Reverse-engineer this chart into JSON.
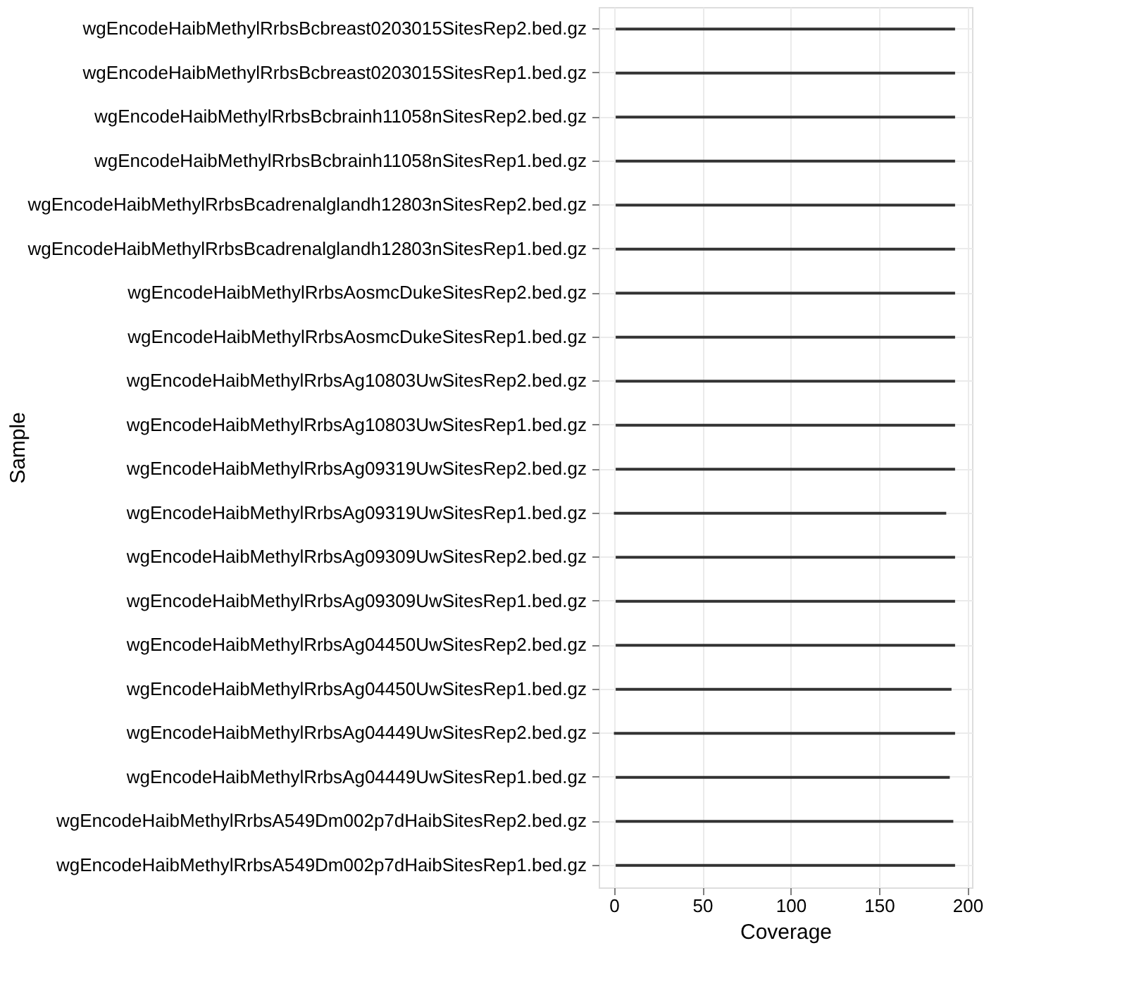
{
  "chart_data": {
    "type": "bar",
    "orientation": "horizontal",
    "xlabel": "Coverage",
    "ylabel": "Sample",
    "categories": [
      "wgEncodeHaibMethylRrbsBcbreast0203015SitesRep2.bed.gz",
      "wgEncodeHaibMethylRrbsBcbreast0203015SitesRep1.bed.gz",
      "wgEncodeHaibMethylRrbsBcbrainh11058nSitesRep2.bed.gz",
      "wgEncodeHaibMethylRrbsBcbrainh11058nSitesRep1.bed.gz",
      "wgEncodeHaibMethylRrbsBcadrenalglandh12803nSitesRep2.bed.gz",
      "wgEncodeHaibMethylRrbsBcadrenalglandh12803nSitesRep1.bed.gz",
      "wgEncodeHaibMethylRrbsAosmcDukeSitesRep2.bed.gz",
      "wgEncodeHaibMethylRrbsAosmcDukeSitesRep1.bed.gz",
      "wgEncodeHaibMethylRrbsAg10803UwSitesRep2.bed.gz",
      "wgEncodeHaibMethylRrbsAg10803UwSitesRep1.bed.gz",
      "wgEncodeHaibMethylRrbsAg09319UwSitesRep2.bed.gz",
      "wgEncodeHaibMethylRrbsAg09319UwSitesRep1.bed.gz",
      "wgEncodeHaibMethylRrbsAg09309UwSitesRep2.bed.gz",
      "wgEncodeHaibMethylRrbsAg09309UwSitesRep1.bed.gz",
      "wgEncodeHaibMethylRrbsAg04450UwSitesRep2.bed.gz",
      "wgEncodeHaibMethylRrbsAg04450UwSitesRep1.bed.gz",
      "wgEncodeHaibMethylRrbsAg04449UwSitesRep2.bed.gz",
      "wgEncodeHaibMethylRrbsAg04449UwSitesRep1.bed.gz",
      "wgEncodeHaibMethylRrbsA549Dm002p7dHaibSitesRep2.bed.gz",
      "wgEncodeHaibMethylRrbsA549Dm002p7dHaibSitesRep1.bed.gz"
    ],
    "base": [
      1,
      1,
      1,
      1,
      1,
      1,
      1,
      1,
      1,
      1,
      1,
      0,
      1,
      1,
      1,
      1,
      0,
      1,
      1,
      1
    ],
    "values": [
      192,
      192,
      192,
      192,
      192,
      192,
      192,
      192,
      192,
      192,
      192,
      188,
      192,
      192,
      192,
      190,
      193,
      189,
      191,
      192
    ],
    "color": "#333333",
    "xlim": [
      -8.6,
      202.6
    ],
    "xticks": [
      0,
      50,
      100,
      150,
      200
    ],
    "grid": true
  }
}
